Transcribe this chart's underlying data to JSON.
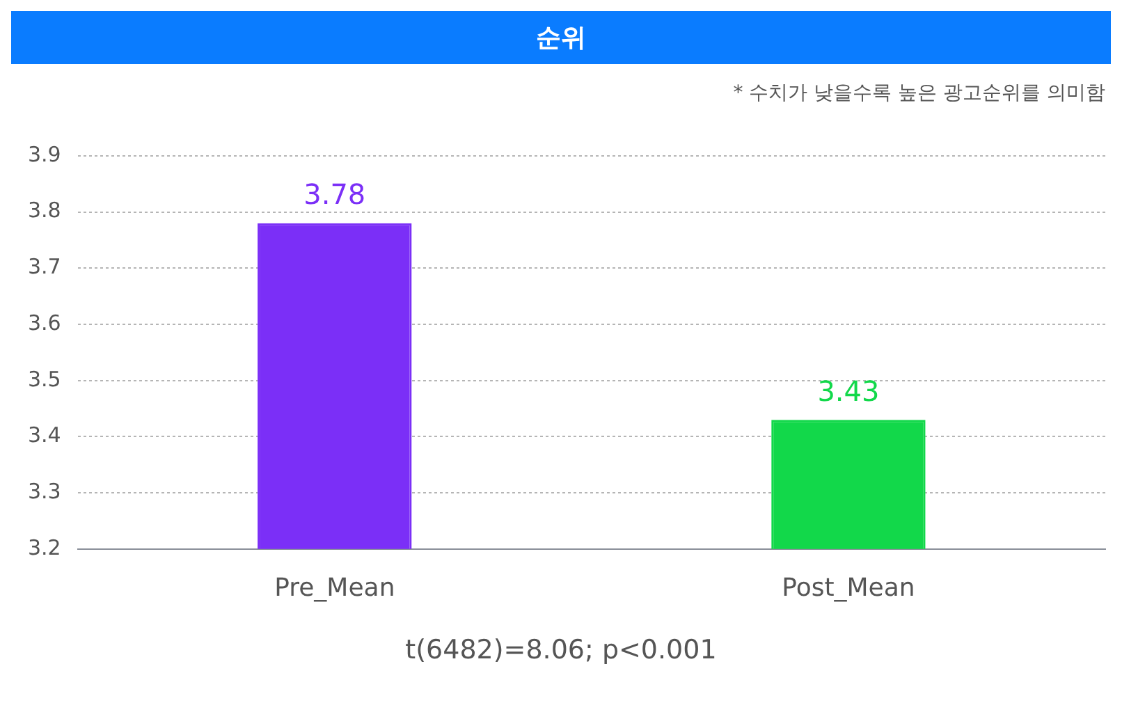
{
  "chart_data": {
    "type": "bar",
    "title": "순위",
    "subtitle": "* 수치가 낮을수록 높은 광고순위를 의미함",
    "categories": [
      "Pre_Mean",
      "Post_Mean"
    ],
    "values": [
      3.78,
      3.43
    ],
    "colors": [
      "#7b2ff7",
      "#12d84a"
    ],
    "ylim": [
      3.2,
      3.9
    ],
    "yticks": [
      3.2,
      3.3,
      3.4,
      3.5,
      3.6,
      3.7,
      3.8,
      3.9
    ],
    "grid": "y",
    "data_labels": true,
    "legend": false,
    "annotations": [
      "t(6482)=8.06; p<0.001"
    ]
  }
}
